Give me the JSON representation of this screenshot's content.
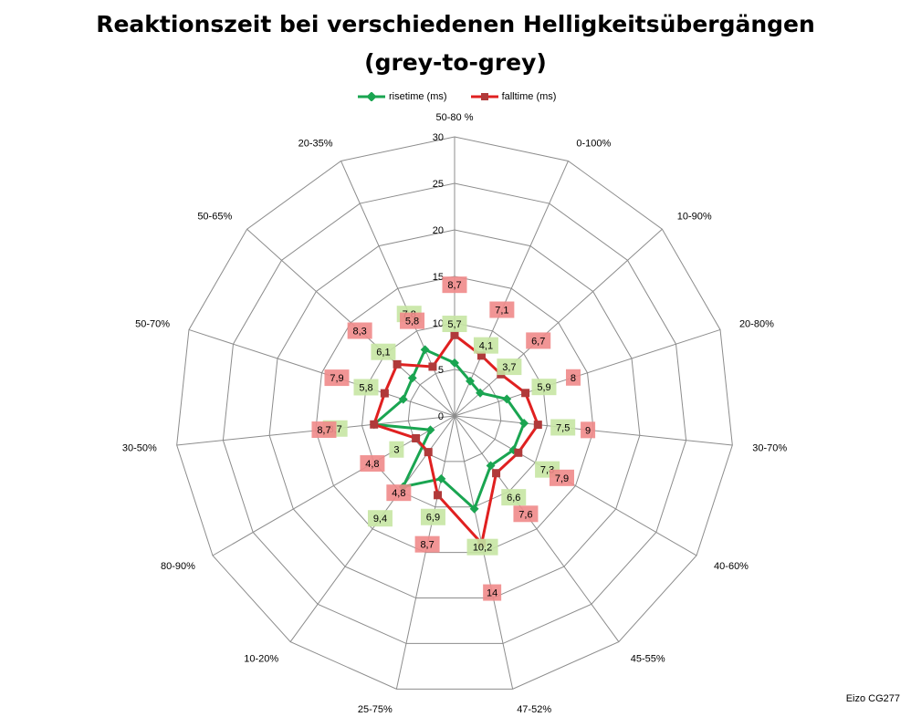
{
  "title_line1": "Reaktionszeit bei verschiedenen Helligkeitsübergängen",
  "title_line2": "(grey-to-grey)",
  "footer": "Eizo CG277",
  "chart_data": {
    "type": "radar",
    "categories": [
      "50-80 %",
      "0-100%",
      "10-90%",
      "20-80%",
      "30-70%",
      "40-60%",
      "45-55%",
      "47-52%",
      "25-75%",
      "10-20%",
      "80-90%",
      "30-50%",
      "50-70%",
      "50-65%",
      "20-35%"
    ],
    "series": [
      {
        "name": "risetime (ms)",
        "color": "#1aa551",
        "label_bg": "#c6e6a3",
        "values": [
          5.7,
          4.1,
          3.7,
          5.9,
          7.5,
          7.3,
          6.6,
          10.2,
          6.9,
          9.4,
          3,
          8.7,
          5.8,
          6.1,
          7.8
        ]
      },
      {
        "name": "falltime (ms)",
        "color": "#e02020",
        "label_bg": "#f08a8a",
        "values": [
          8.7,
          7.1,
          6.7,
          8,
          9,
          7.9,
          7.6,
          14,
          8.7,
          4.8,
          4.8,
          8.7,
          7.9,
          8.3,
          5.8
        ]
      }
    ],
    "r_ticks": [
      0,
      5,
      10,
      15,
      20,
      25,
      30
    ],
    "rlim": [
      0,
      30
    ],
    "data_labels": {
      "risetime (ms)": [
        "5,7",
        "4,1",
        "3,7",
        "5,9",
        "7,5",
        "7,3",
        "6,6",
        "10,2",
        "6,9",
        "9,4",
        "3",
        "8,7",
        "5,8",
        "6,1",
        "7,8"
      ],
      "falltime (ms)": [
        "8,7",
        "7,1",
        "6,7",
        "8",
        "9",
        "7,9",
        "7,6",
        "14",
        "8,7",
        "4,8",
        "4,8",
        "8,7",
        "7,9",
        "8,3",
        "5,8"
      ]
    },
    "legend_position": "top"
  }
}
